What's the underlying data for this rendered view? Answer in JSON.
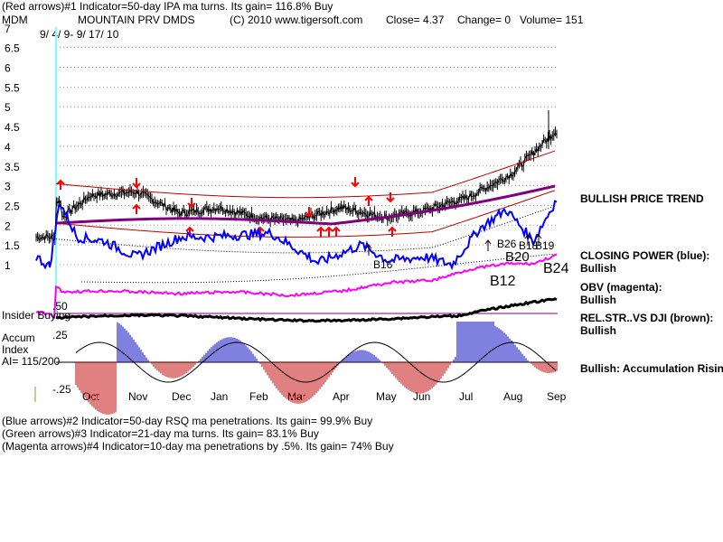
{
  "header": {
    "line1": "(Red arrows)#1 Indicator=50-day IPA ma turns. Its gain= 116.8% Buy",
    "ticker": "MDM",
    "name": "MOUNTAIN PRV DMDS",
    "copyright": "(C) 2010 www.tigersoft.com",
    "close": "Close=  4.37",
    "change": "Change= 0",
    "volume": "Volume= 151"
  },
  "footer": {
    "line1": "(Blue arrows)#2 Indicator=50-day RSQ ma penetrations. Its gain= 99.9% Buy",
    "line2": "(Green arrows)#3 Indicator=21-day ma turns. Its gain= 83.1% Buy",
    "line3": "(Magenta arrows)#4 Indicator=10-day ma penetrations by .5%. Its gain= 74% Buy"
  },
  "right_panel": {
    "trend": "BULLISH PRICE TREND",
    "closing_power": "CLOSING POWER (blue):",
    "closing_power_state": "Bullish",
    "obv": "OBV (magenta):",
    "obv_state": "Bullish",
    "relstr": "REL.STR..VS DJI (brown):",
    "relstr_state": "Bullish",
    "accum": "Bullish: Accumulation Rising"
  },
  "colors": {
    "price": "#000000",
    "closing_power": "#0000ff",
    "obv": "#ff00ff",
    "ma": "#800080",
    "bands": "#c00000",
    "arrows_red": "#ff0000",
    "accum_pos": "#0000c0",
    "accum_neg": "#c00000",
    "insider_line": "#800080",
    "relstr": "#000000",
    "date_line": "#80ffff"
  },
  "chart_data": {
    "type": "line",
    "date_range_label": "9/ 4/ 9- 9/ 17/ 10",
    "x_tick_labels": [
      "Oct",
      "Nov",
      "Dec",
      "Jan",
      "Feb",
      "Mar",
      "Apr",
      "May",
      "Jun",
      "Jul",
      "Aug",
      "Sep"
    ],
    "y_tick_labels": [
      "7",
      "6.5",
      "6",
      "5.5",
      "5",
      "4.5",
      "4",
      "3.5",
      "3",
      "2.5",
      "2",
      "1.5",
      "1"
    ],
    "ylim": [
      1,
      7
    ],
    "grid": true,
    "signal_labels": [
      "B16",
      "B26",
      "B18",
      "B19",
      "B20",
      "B12",
      "B24"
    ],
    "insider_label": "Insider Buying",
    "insider_value": ".50",
    "accum_labels": [
      "Accum",
      "Index",
      "AI= 115/200"
    ],
    "accum_ticks": [
      ".25",
      "-.25"
    ],
    "series": [
      {
        "name": "Close",
        "months": [
          "Sep",
          "Oct",
          "Nov",
          "Dec",
          "Jan",
          "Feb",
          "Mar",
          "Apr",
          "May",
          "Jun",
          "Jul",
          "Aug",
          "Sep"
        ],
        "values": [
          1.7,
          2.75,
          2.85,
          2.3,
          2.45,
          2.2,
          2.1,
          2.45,
          2.2,
          2.35,
          2.7,
          3.3,
          4.37
        ]
      }
    ]
  }
}
